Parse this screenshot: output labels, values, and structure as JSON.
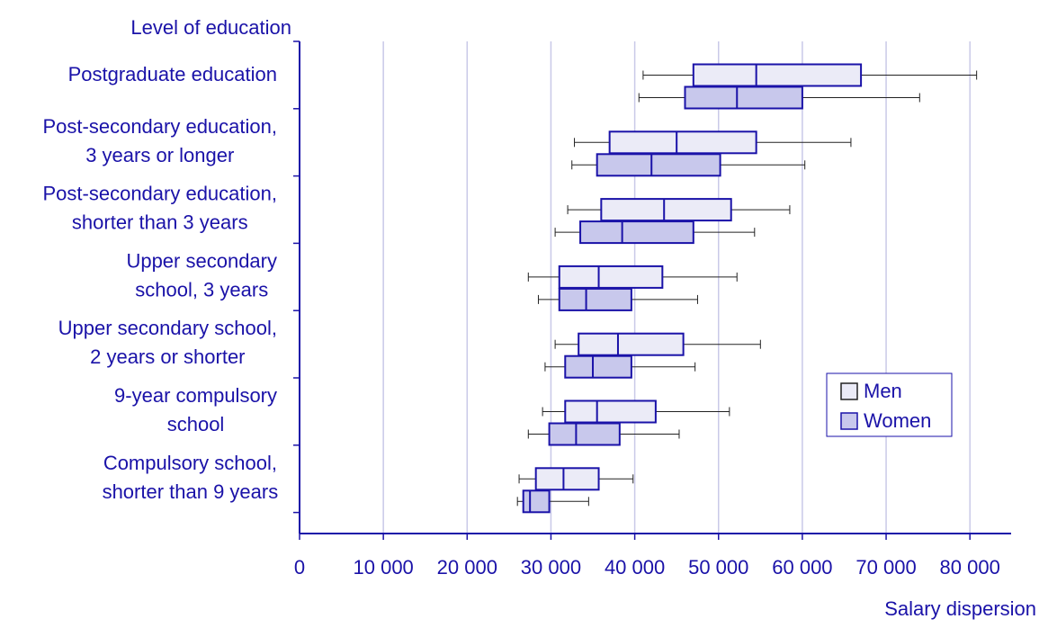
{
  "chart_data": {
    "type": "boxplot",
    "y_axis_title": "Level of education",
    "x_axis_title": "Salary dispersion",
    "xlim": [
      0,
      85000
    ],
    "x_ticks": [
      0,
      10000,
      20000,
      30000,
      40000,
      50000,
      60000,
      70000,
      80000
    ],
    "x_tick_labels": [
      "0",
      "10 000",
      "20 000",
      "30 000",
      "40 000",
      "50 000",
      "60 000",
      "70 000",
      "80 000"
    ],
    "grid": "vertical",
    "legend_position": "bottom-right",
    "legend": [
      {
        "key": "men",
        "label": "Men",
        "color": "#ebebf7"
      },
      {
        "key": "women",
        "label": "Women",
        "color": "#c8c8ec"
      }
    ],
    "colors": {
      "text": "#1a12a8",
      "box_edge": "#1a12a8",
      "grid": "#c9c9e8",
      "axis": "#1a12a8",
      "whisker": "#222222"
    },
    "categories": [
      {
        "lines": [
          "Postgraduate education"
        ],
        "men": {
          "min": 41000,
          "q1": 47000,
          "median": 54500,
          "q3": 67000,
          "max": 80800
        },
        "women": {
          "min": 40500,
          "q1": 46000,
          "median": 52200,
          "q3": 60000,
          "max": 74000
        }
      },
      {
        "lines": [
          "Post-secondary education,",
          "3 years or longer"
        ],
        "men": {
          "min": 32800,
          "q1": 37000,
          "median": 45000,
          "q3": 54500,
          "max": 65800
        },
        "women": {
          "min": 32500,
          "q1": 35500,
          "median": 42000,
          "q3": 50200,
          "max": 60300
        }
      },
      {
        "lines": [
          "Post-secondary education,",
          "shorter than 3 years"
        ],
        "men": {
          "min": 32000,
          "q1": 36000,
          "median": 43500,
          "q3": 51500,
          "max": 58500
        },
        "women": {
          "min": 30500,
          "q1": 33500,
          "median": 38500,
          "q3": 47000,
          "max": 54300
        }
      },
      {
        "lines": [
          "Upper secondary",
          "school, 3 years"
        ],
        "men": {
          "min": 27300,
          "q1": 31000,
          "median": 35700,
          "q3": 43300,
          "max": 52200
        },
        "women": {
          "min": 28500,
          "q1": 31000,
          "median": 34200,
          "q3": 39600,
          "max": 47500
        }
      },
      {
        "lines": [
          "Upper secondary school,",
          "2 years or shorter"
        ],
        "men": {
          "min": 30500,
          "q1": 33300,
          "median": 38000,
          "q3": 45800,
          "max": 55000
        },
        "women": {
          "min": 29300,
          "q1": 31700,
          "median": 35000,
          "q3": 39600,
          "max": 47200
        }
      },
      {
        "lines": [
          "9-year compulsory",
          "school"
        ],
        "men": {
          "min": 29000,
          "q1": 31700,
          "median": 35500,
          "q3": 42500,
          "max": 51300
        },
        "women": {
          "min": 27300,
          "q1": 29800,
          "median": 33000,
          "q3": 38200,
          "max": 45300
        }
      },
      {
        "lines": [
          "Compulsory school,",
          "shorter than 9 years"
        ],
        "men": {
          "min": 26200,
          "q1": 28200,
          "median": 31500,
          "q3": 35700,
          "max": 39800
        },
        "women": {
          "min": 26000,
          "q1": 26700,
          "median": 27500,
          "q3": 29800,
          "max": 34500
        }
      }
    ]
  }
}
